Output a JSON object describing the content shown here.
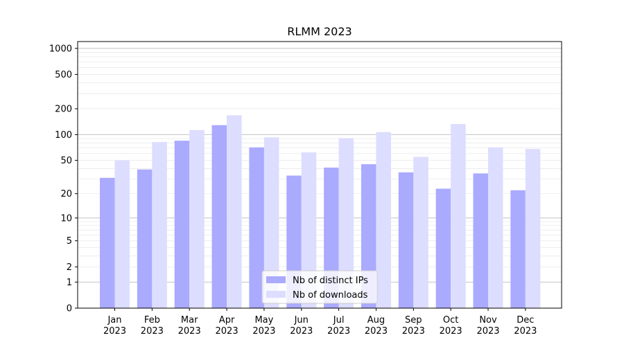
{
  "chart_data": {
    "type": "bar",
    "title": "RLMM 2023",
    "xlabel": "",
    "ylabel": "",
    "yscale": "log(1+y)",
    "ylim": [
      0,
      1200
    ],
    "yticks": [
      0,
      1,
      2,
      5,
      10,
      20,
      50,
      100,
      200,
      500,
      1000
    ],
    "categories": [
      "Jan",
      "Feb",
      "Mar",
      "Apr",
      "May",
      "Jun",
      "Jul",
      "Aug",
      "Sep",
      "Oct",
      "Nov",
      "Dec"
    ],
    "category_sublabel": "2023",
    "series": [
      {
        "name": "Nb of distinct IPs",
        "color": "#aaaaff",
        "values": [
          31,
          39,
          85,
          129,
          71,
          33,
          41,
          45,
          36,
          23,
          35,
          22
        ]
      },
      {
        "name": "Nb of downloads",
        "color": "#ddddff",
        "values": [
          50,
          82,
          113,
          168,
          93,
          62,
          91,
          107,
          55,
          133,
          71,
          68
        ]
      }
    ],
    "grid": true,
    "legend_position": "lower-center"
  }
}
